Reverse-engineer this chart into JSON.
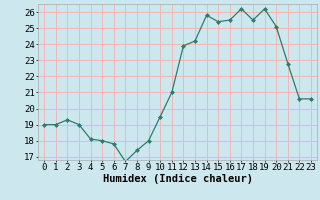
{
  "x": [
    0,
    1,
    2,
    3,
    4,
    5,
    6,
    7,
    8,
    9,
    10,
    11,
    12,
    13,
    14,
    15,
    16,
    17,
    18,
    19,
    20,
    21,
    22,
    23
  ],
  "y": [
    19.0,
    19.0,
    19.3,
    19.0,
    18.1,
    18.0,
    17.8,
    16.7,
    17.4,
    18.0,
    19.5,
    21.0,
    23.9,
    24.2,
    25.8,
    25.4,
    25.5,
    26.2,
    25.5,
    26.2,
    25.1,
    22.8,
    20.6,
    20.6
  ],
  "xlabel": "Humidex (Indice chaleur)",
  "ylim": [
    16.8,
    26.5
  ],
  "yticks": [
    17,
    18,
    19,
    20,
    21,
    22,
    23,
    24,
    25,
    26
  ],
  "xticks": [
    0,
    1,
    2,
    3,
    4,
    5,
    6,
    7,
    8,
    9,
    10,
    11,
    12,
    13,
    14,
    15,
    16,
    17,
    18,
    19,
    20,
    21,
    22,
    23
  ],
  "line_color": "#2d7d6e",
  "marker_color": "#2d7d6e",
  "bg_color": "#cce8ee",
  "grid_color": "#f0b0b0",
  "label_fontsize": 7.5,
  "tick_fontsize": 6.5
}
